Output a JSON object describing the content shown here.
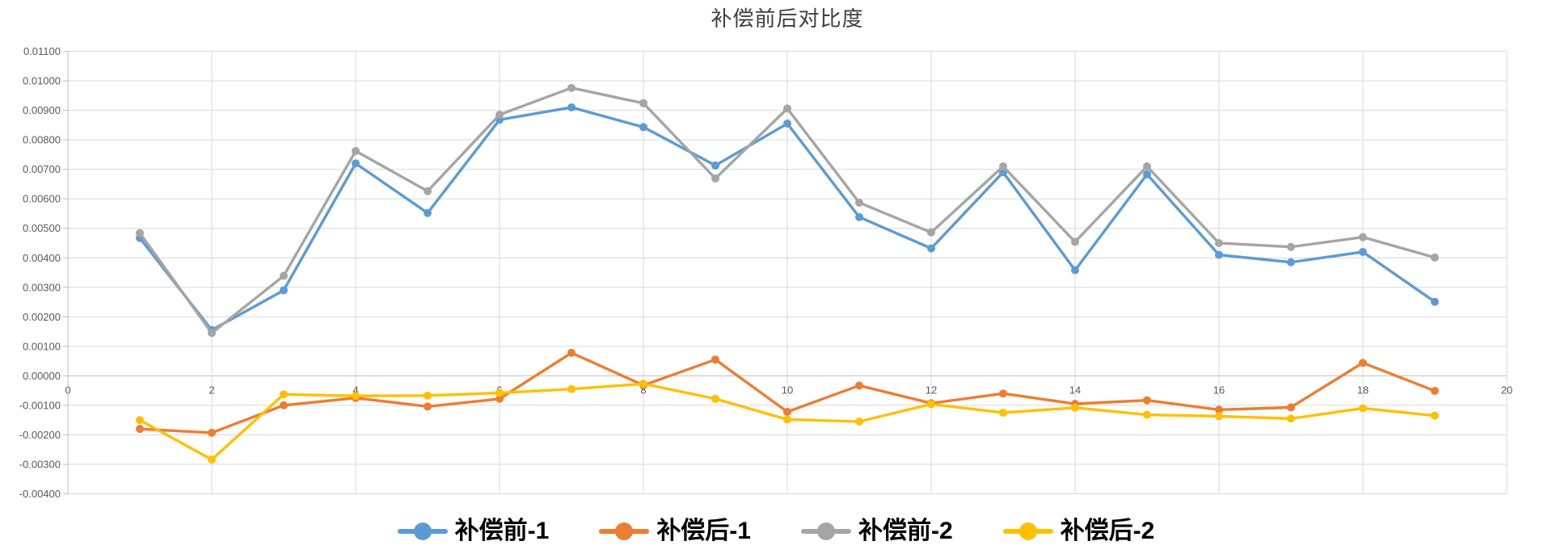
{
  "title": "补偿前后对比度",
  "colors": {
    "background": "#FFFFFF",
    "gridline": "#D9D9D9",
    "axis_line": "#BFBFBF",
    "axis_label": "#595959",
    "title_text": "#404040",
    "legend_text": "#000000"
  },
  "chart_data": {
    "type": "line",
    "title": "补偿前后对比度",
    "xlabel": "",
    "ylabel": "",
    "grid": true,
    "legend_position": "bottom",
    "marker": "circle",
    "x": [
      1,
      2,
      3,
      4,
      5,
      6,
      7,
      8,
      9,
      10,
      11,
      12,
      13,
      14,
      15,
      16,
      17,
      18,
      19
    ],
    "x_axis": {
      "min": 0,
      "max": 20,
      "tick_step": 2,
      "tick_labels": [
        "0",
        "2",
        "4",
        "6",
        "8",
        "10",
        "12",
        "14",
        "16",
        "18",
        "20"
      ]
    },
    "y_axis": {
      "min": -0.004,
      "max": 0.011,
      "tick_step": 0.001,
      "tick_labels": [
        "0.01100",
        "0.01000",
        "0.00900",
        "0.00800",
        "0.00700",
        "0.00600",
        "0.00500",
        "0.00400",
        "0.00300",
        "0.00200",
        "0.00100",
        "0.00000",
        "-0.00100",
        "-0.00200",
        "-0.00300",
        "-0.00400"
      ]
    },
    "series": [
      {
        "name": "补偿前-1",
        "color": "#5B9BD5",
        "values": [
          0.00467,
          0.00155,
          0.0029,
          0.0072,
          0.00552,
          0.00868,
          0.0091,
          0.00843,
          0.00713,
          0.00855,
          0.00538,
          0.00432,
          0.0069,
          0.00358,
          0.00683,
          0.0041,
          0.00385,
          0.0042,
          0.00251
        ]
      },
      {
        "name": "补偿后-1",
        "color": "#ED7D31",
        "values": [
          -0.0018,
          -0.00193,
          -0.001,
          -0.00075,
          -0.00104,
          -0.00078,
          0.00078,
          -0.00032,
          0.00055,
          -0.00122,
          -0.00033,
          -0.00093,
          -0.0006,
          -0.00095,
          -0.00083,
          -0.00115,
          -0.00107,
          0.00044,
          -0.00051
        ]
      },
      {
        "name": "补偿前-2",
        "color": "#A5A5A5",
        "values": [
          0.00484,
          0.00145,
          0.00339,
          0.00762,
          0.00626,
          0.00885,
          0.00976,
          0.00924,
          0.00669,
          0.00906,
          0.00587,
          0.00486,
          0.0071,
          0.00454,
          0.0071,
          0.0045,
          0.00437,
          0.0047,
          0.00401
        ]
      },
      {
        "name": "补偿后-2",
        "color": "#FFC000",
        "values": [
          -0.0015,
          -0.00284,
          -0.00063,
          -0.00068,
          -0.00067,
          -0.00058,
          -0.00045,
          -0.00027,
          -0.00078,
          -0.00148,
          -0.00155,
          -0.00096,
          -0.00125,
          -0.00108,
          -0.00132,
          -0.00137,
          -0.00145,
          -0.0011,
          -0.00135
        ]
      }
    ]
  }
}
